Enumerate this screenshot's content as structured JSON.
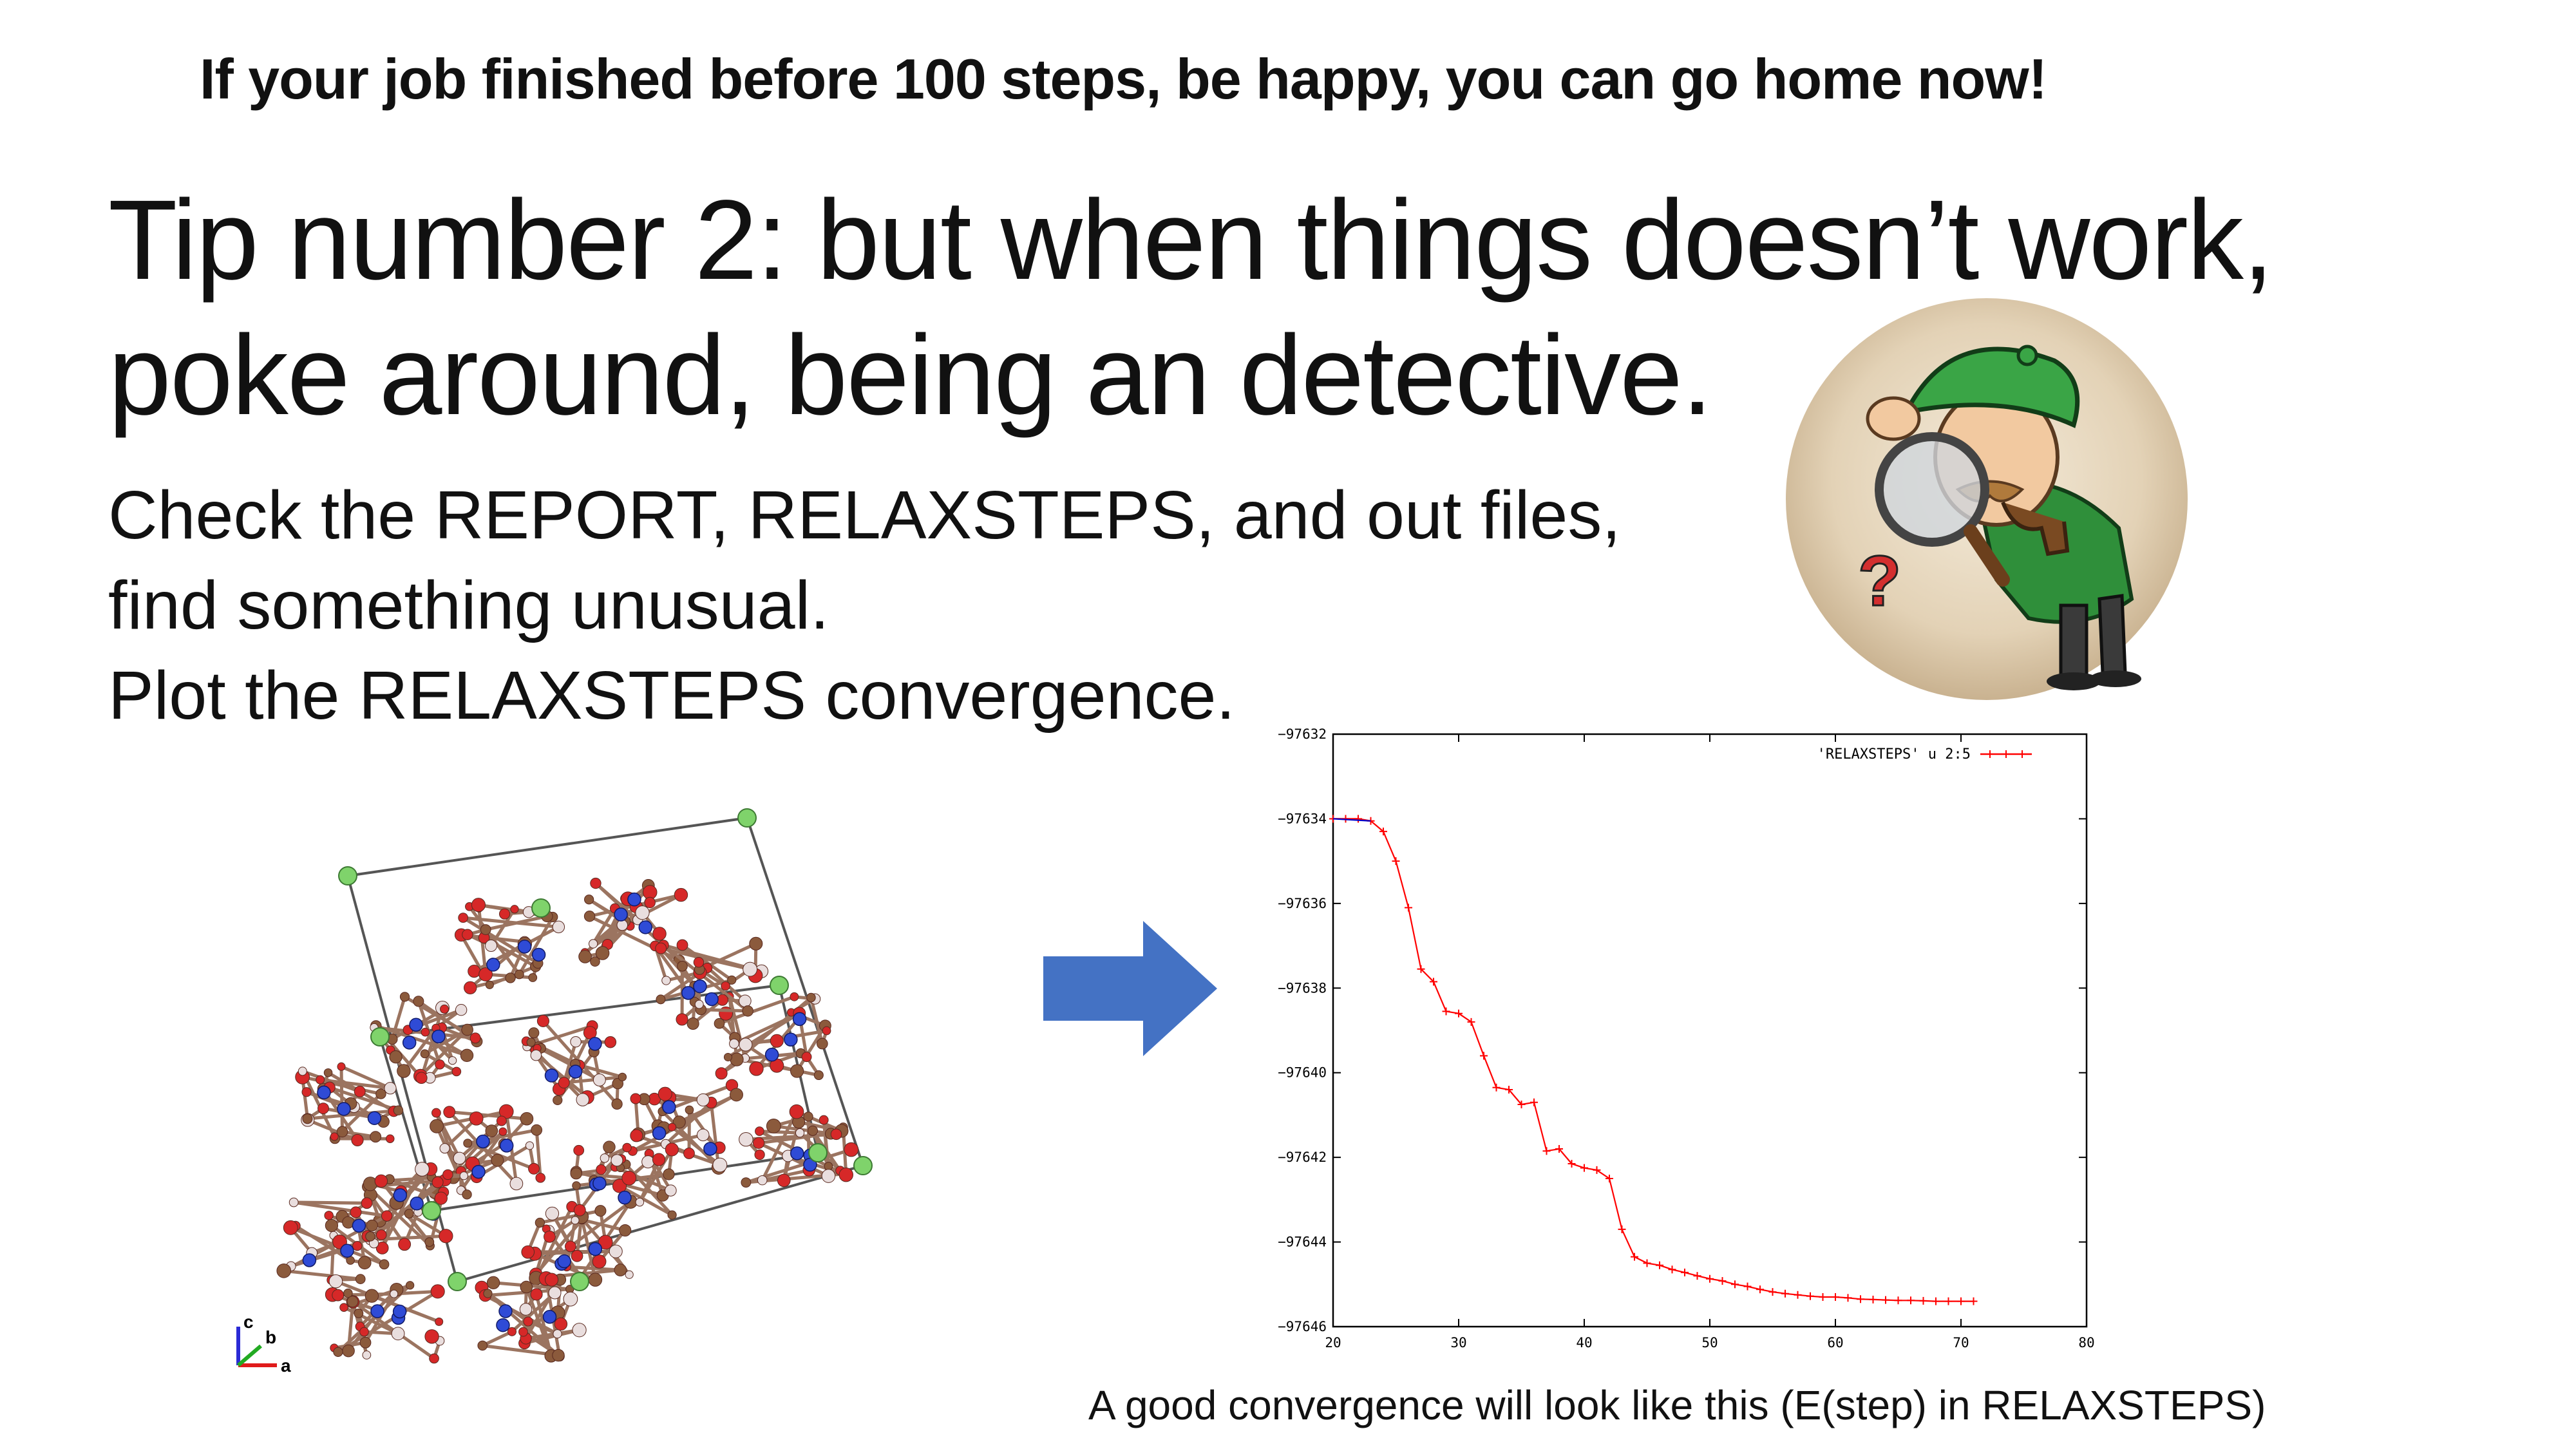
{
  "slide": {
    "top_note": "If your job finished before 100 steps, be happy, you can go home now!",
    "title_line1": "Tip number 2: but when things doesn’t work,",
    "title_line2": "poke around, being an detective.",
    "body_lines": [
      "Check the REPORT, RELAXSTEPS, and out files,",
      "find something unusual.",
      "Plot the RELAXSTEPS convergence."
    ],
    "caption": "A good convergence will look like this (E(step) in RELAXSTEPS)",
    "axis_labels": {
      "c": "c",
      "b": "b",
      "a": "a"
    },
    "detective_glyph": "?"
  },
  "images": {
    "detective": "detective-illustration",
    "molecule": "crystal-structure-render",
    "arrow": "right-arrow"
  },
  "colors": {
    "arrow_fill": "#4472c4",
    "plot_line": "#ff0000",
    "plot_start": "#0000cc",
    "atom_oxygen": "#d62828",
    "atom_carbon": "#8b5a3c",
    "atom_nitrogen": "#2f4bd6",
    "atom_metal": "#7fd36b"
  },
  "chart_data": {
    "type": "line",
    "title": "",
    "xlabel": "",
    "ylabel": "",
    "xlim": [
      20,
      80
    ],
    "ylim": [
      -97646,
      -97632
    ],
    "xticks": [
      20,
      30,
      40,
      50,
      60,
      70,
      80
    ],
    "yticks": [
      -97632,
      -97634,
      -97636,
      -97638,
      -97640,
      -97642,
      -97644,
      -97646
    ],
    "legend_position": "top-right",
    "grid": false,
    "series": [
      {
        "name": "'RELAXSTEPS' u 2:5",
        "color": "#ff0000",
        "x": [
          20,
          21,
          22,
          23,
          24,
          25,
          26,
          27,
          28,
          29,
          30,
          31,
          32,
          33,
          34,
          35,
          36,
          37,
          38,
          39,
          40,
          41,
          42,
          43,
          44,
          45,
          46,
          47,
          48,
          49,
          50,
          51,
          52,
          53,
          54,
          55,
          56,
          57,
          58,
          59,
          60,
          61,
          62,
          63,
          64,
          65,
          66,
          67,
          68,
          69,
          70,
          71
        ],
        "y": [
          -97634.0,
          -97634.0,
          -97634.0,
          -97634.05,
          -97634.3,
          -97635.0,
          -97636.1,
          -97637.55,
          -97637.85,
          -97638.55,
          -97638.6,
          -97638.8,
          -97639.6,
          -97640.35,
          -97640.4,
          -97640.75,
          -97640.7,
          -97641.85,
          -97641.8,
          -97642.15,
          -97642.25,
          -97642.3,
          -97642.5,
          -97643.7,
          -97644.35,
          -97644.5,
          -97644.55,
          -97644.65,
          -97644.72,
          -97644.8,
          -97644.87,
          -97644.92,
          -97645.0,
          -97645.05,
          -97645.12,
          -97645.18,
          -97645.22,
          -97645.25,
          -97645.28,
          -97645.3,
          -97645.3,
          -97645.32,
          -97645.35,
          -97645.36,
          -97645.37,
          -97645.38,
          -97645.38,
          -97645.39,
          -97645.4,
          -97645.4,
          -97645.4,
          -97645.4
        ]
      }
    ]
  }
}
